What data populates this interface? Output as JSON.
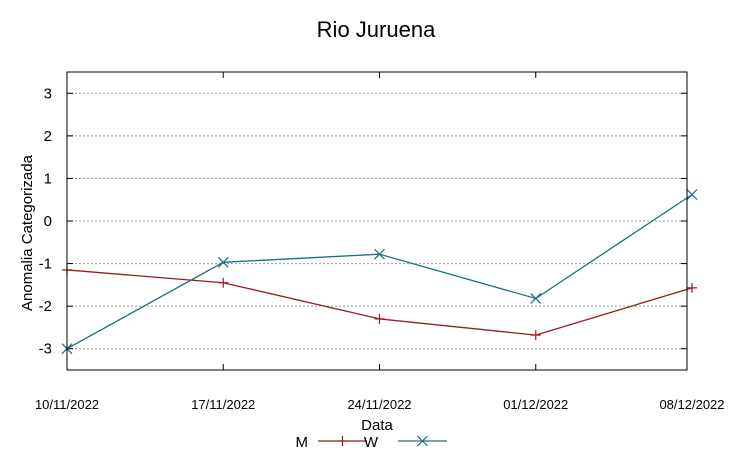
{
  "chart_data": {
    "type": "line",
    "title": "Rio Juruena",
    "xlabel": "Data",
    "ylabel": "Anomalia Categorizada",
    "categories": [
      "10/11/2022",
      "17/11/2022",
      "24/11/2022",
      "01/12/2022",
      "08/12/2022"
    ],
    "ylim": [
      -3.5,
      3.5
    ],
    "yticks": [
      -3,
      -2,
      -1,
      0,
      1,
      2,
      3
    ],
    "grid": true,
    "legend_position": "bottom-center",
    "series": [
      {
        "name": "M",
        "color": "#9b1a1f",
        "marker": "plus",
        "values": [
          -1.15,
          -1.45,
          -2.3,
          -2.68,
          -1.57
        ]
      },
      {
        "name": "W",
        "color": "#1a6f7a",
        "marker": "x",
        "values": [
          -3.0,
          -0.97,
          -0.78,
          -1.82,
          0.62
        ]
      }
    ]
  }
}
